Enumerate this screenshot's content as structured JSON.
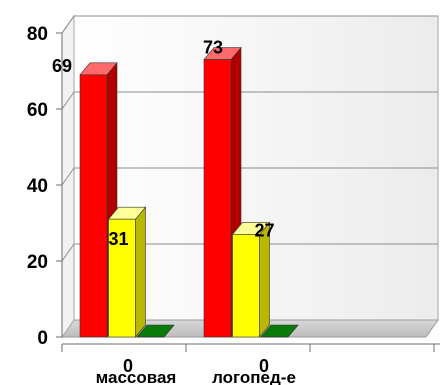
{
  "chart_data": {
    "type": "bar",
    "categories": [
      "массовая",
      "логопед-е"
    ],
    "series": [
      {
        "values": [
          69,
          73
        ],
        "color": "#ff0000",
        "side_color": "#b00000",
        "top_color": "#ff6a6a"
      },
      {
        "values": [
          31,
          27
        ],
        "color": "#ffff00",
        "side_color": "#b8b800",
        "top_color": "#ffff99"
      },
      {
        "values": [
          0,
          0
        ],
        "color": "#0a7a0a",
        "side_color": "#064d06",
        "top_color": "#0a7a0a"
      }
    ],
    "data_labels": [
      [
        "69",
        "73"
      ],
      [
        "31",
        "27"
      ],
      [
        "0",
        "0"
      ]
    ],
    "y_ticks": [
      "0",
      "20",
      "40",
      "60",
      "80"
    ],
    "ylim": [
      0,
      80
    ],
    "grid": true,
    "legend": "none",
    "title": "",
    "xlabel": "",
    "ylabel": ""
  }
}
